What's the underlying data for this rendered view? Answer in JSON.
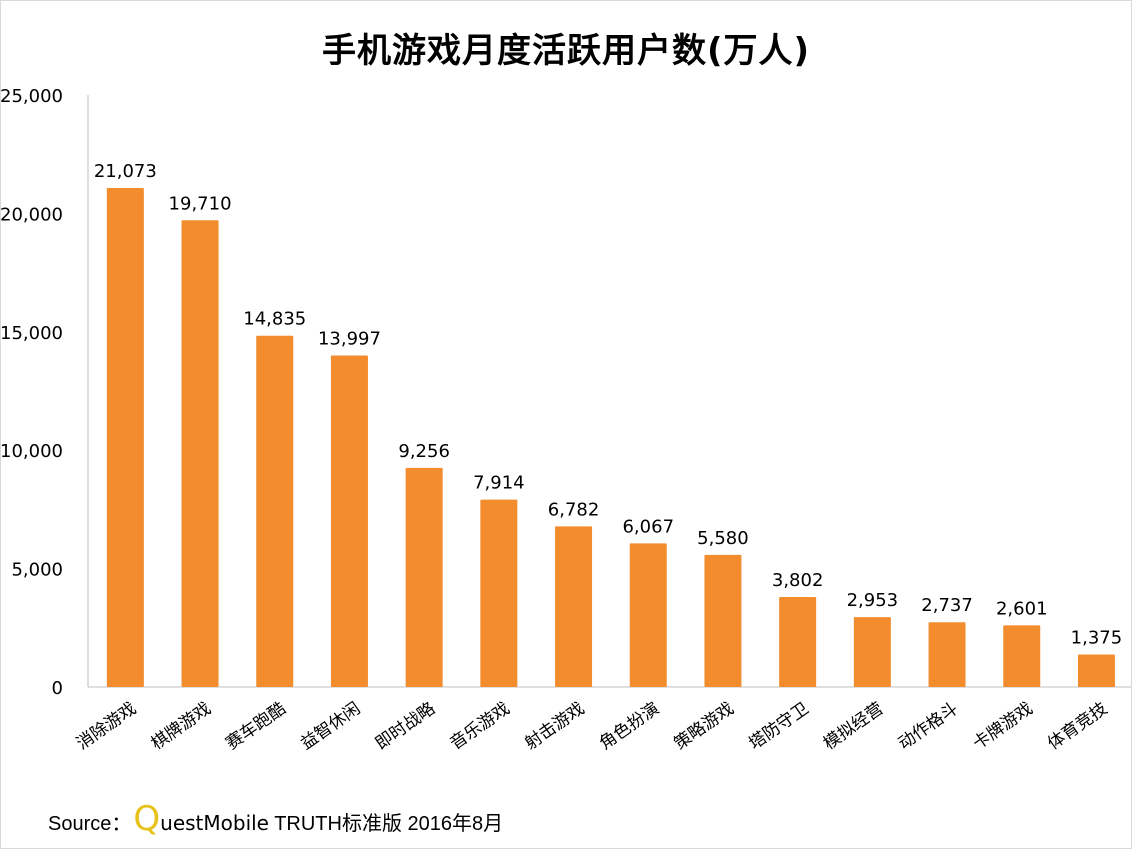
{
  "chart_data": {
    "type": "bar",
    "title": "手机游戏月度活跃用户数(万人)",
    "categories": [
      "消除游戏",
      "棋牌游戏",
      "赛车跑酷",
      "益智休闲",
      "即时战略",
      "音乐游戏",
      "射击游戏",
      "角色扮演",
      "策略游戏",
      "塔防守卫",
      "模拟经营",
      "动作格斗",
      "卡牌游戏",
      "体育竞技"
    ],
    "values": [
      21073,
      19710,
      14835,
      13997,
      9256,
      7914,
      6782,
      6067,
      5580,
      3802,
      2953,
      2737,
      2601,
      1375
    ],
    "data_labels": [
      "21,073",
      "19,710",
      "14,835",
      "13,997",
      "9,256",
      "7,914",
      "6,782",
      "6,067",
      "5,580",
      "3,802",
      "2,953",
      "2,737",
      "2,601",
      "1,375"
    ],
    "ylim": [
      0,
      25000
    ],
    "yticks": [
      0,
      5000,
      10000,
      15000,
      20000,
      25000
    ],
    "ytick_labels": [
      "0",
      "5,000",
      "10,000",
      "15,000",
      "20,000",
      "25,000"
    ],
    "xlabel": "",
    "ylabel": "",
    "grid": false,
    "bar_color": "#f28c2c"
  },
  "source": {
    "prefix": "Source：",
    "logo_letter": "Q",
    "brand_rest": "uestMobile",
    "suffix": " TRUTH标准版 2016年8月"
  }
}
